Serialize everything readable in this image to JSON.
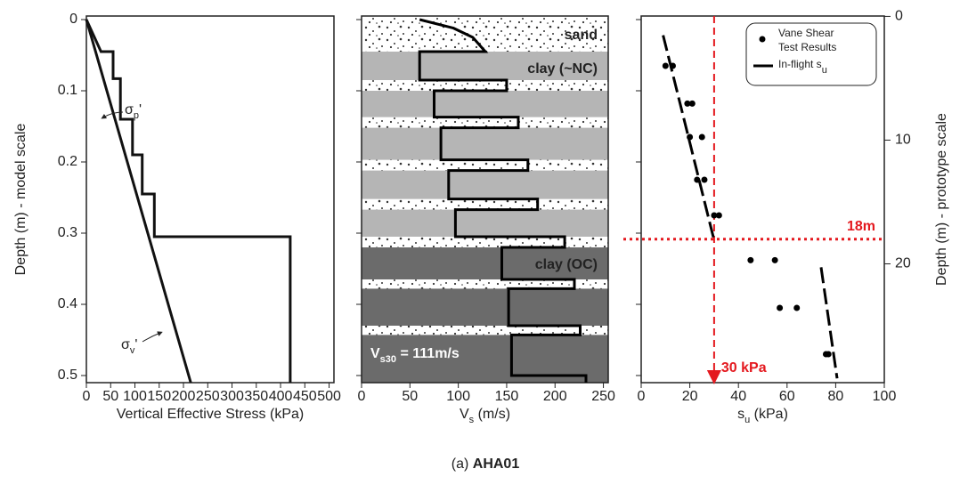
{
  "caption": {
    "prefix": "(a)",
    "name": "AHA01"
  },
  "chart_data": [
    {
      "type": "line",
      "xlabel": {
        "main": "Vertical Effective Stress (kPa)"
      },
      "ylabel": "Depth (m) - model scale",
      "xlim": [
        0,
        510
      ],
      "xticks": [
        0,
        50,
        100,
        150,
        200,
        250,
        300,
        350,
        400,
        450,
        500
      ],
      "ylim": [
        -0.005,
        0.51
      ],
      "yticks": [
        0,
        0.1,
        0.2,
        0.3,
        0.4,
        0.5
      ],
      "series": [
        {
          "label": {
            "main": "σ",
            "sub": "p",
            "rest": "'"
          },
          "color": "#111",
          "x": [
            0,
            30,
            55,
            55,
            70,
            70,
            95,
            95,
            115,
            115,
            140,
            140,
            420,
            420
          ],
          "y": [
            0,
            0.045,
            0.045,
            0.083,
            0.083,
            0.14,
            0.14,
            0.19,
            0.19,
            0.245,
            0.245,
            0.305,
            0.305,
            0.51
          ]
        },
        {
          "label": {
            "main": "σ",
            "sub": "v",
            "rest": "'"
          },
          "color": "#111",
          "x": [
            0,
            215
          ],
          "y": [
            0,
            0.51
          ]
        }
      ]
    },
    {
      "type": "profile",
      "xlabel": {
        "main": "V",
        "sub": "s",
        "rest": " (m/s)"
      },
      "xlim": [
        0,
        255
      ],
      "xticks": [
        0,
        50,
        100,
        150,
        200,
        250
      ],
      "ylim": [
        -0.005,
        0.51
      ],
      "clay_nc": [
        0.045,
        0.305
      ],
      "clay_nc_color": "#b5b5b5",
      "clay_oc": [
        0.305,
        0.51
      ],
      "clay_oc_color": "#6b6b6b",
      "sand_layers": [
        [
          -0.005,
          0.045
        ],
        [
          0.085,
          0.1
        ],
        [
          0.137,
          0.152
        ],
        [
          0.197,
          0.212
        ],
        [
          0.252,
          0.267
        ],
        [
          0.305,
          0.32
        ],
        [
          0.365,
          0.378
        ],
        [
          0.43,
          0.443
        ]
      ],
      "layer_labels": [
        "sand",
        "clay (~NC)",
        "clay (OC)"
      ],
      "vs30": {
        "main": "V",
        "sub": "s30",
        "rest": " = 111m/s"
      },
      "series": [
        {
          "color": "#000",
          "x": [
            60,
            95,
            115,
            128,
            60,
            60,
            150,
            150,
            75,
            75,
            162,
            162,
            82,
            82,
            172,
            172,
            90,
            90,
            182,
            182,
            97,
            97,
            210,
            210,
            145,
            145,
            220,
            220,
            152,
            152,
            226,
            226,
            155,
            155,
            232,
            232
          ],
          "y": [
            0,
            0.012,
            0.025,
            0.045,
            0.045,
            0.085,
            0.085,
            0.1,
            0.1,
            0.137,
            0.137,
            0.152,
            0.152,
            0.197,
            0.197,
            0.212,
            0.212,
            0.252,
            0.252,
            0.267,
            0.267,
            0.305,
            0.305,
            0.32,
            0.32,
            0.365,
            0.365,
            0.378,
            0.378,
            0.43,
            0.43,
            0.443,
            0.443,
            0.5,
            0.5,
            0.51
          ]
        }
      ]
    },
    {
      "type": "scatter",
      "xlabel": {
        "main": "s",
        "sub": "u",
        "rest": " (kPa)"
      },
      "y2label": "Depth (m) - prototype scale",
      "xlim": [
        0,
        100
      ],
      "xticks": [
        0,
        20,
        40,
        60,
        80,
        100
      ],
      "ylim": [
        -0.005,
        0.51
      ],
      "y2lim": [
        -0.03,
        29.6
      ],
      "y2ticks": [
        0,
        10,
        20
      ],
      "series": [
        {
          "name": [
            "Vane Shear",
            "Test Results"
          ],
          "color": "#000",
          "x": [
            10,
            13,
            19,
            21,
            20,
            25,
            23,
            26,
            30,
            32,
            45,
            55,
            57,
            64,
            76,
            77
          ],
          "y": [
            0.065,
            0.065,
            0.118,
            0.118,
            0.165,
            0.165,
            0.225,
            0.225,
            0.275,
            0.275,
            0.338,
            0.338,
            0.405,
            0.405,
            0.47,
            0.47
          ]
        },
        {
          "name": {
            "main": "In-flight s",
            "sub": "u"
          },
          "color": "#000",
          "x": [
            9,
            30,
            null,
            74,
            80.6
          ],
          "y": [
            0.022,
            0.31,
            null,
            0.348,
            0.504
          ]
        }
      ],
      "threshold_color": "#e4191f",
      "threshold_depth": 18,
      "threshold_depth_label": "18m",
      "threshold_su": 30,
      "threshold_su_label": "30 kPa"
    }
  ]
}
